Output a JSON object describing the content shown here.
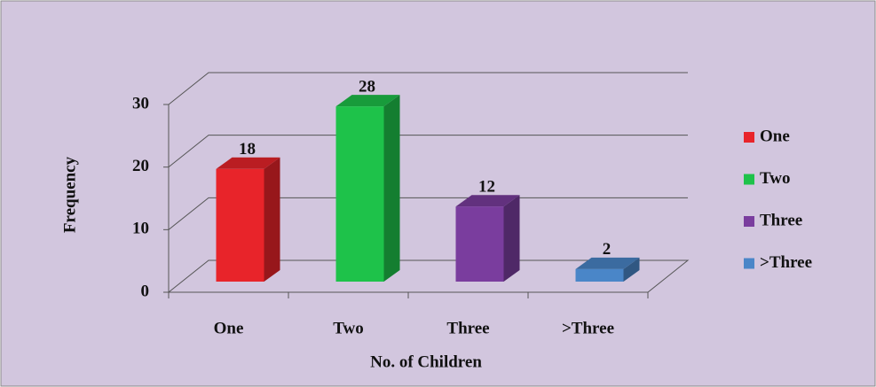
{
  "chart_data": {
    "type": "bar3d",
    "categories": [
      "One",
      "Two",
      "Three",
      ">Three"
    ],
    "values": [
      18,
      28,
      12,
      2
    ],
    "colors": [
      "#e8242a",
      "#1ec24a",
      "#7a3d9e",
      "#4a86c8"
    ],
    "ylim": [
      0,
      30
    ],
    "yticks": [
      0,
      10,
      20,
      30
    ],
    "grid": true,
    "y_label": "Frequency",
    "x_label": "No. of Children",
    "legend": "right"
  }
}
